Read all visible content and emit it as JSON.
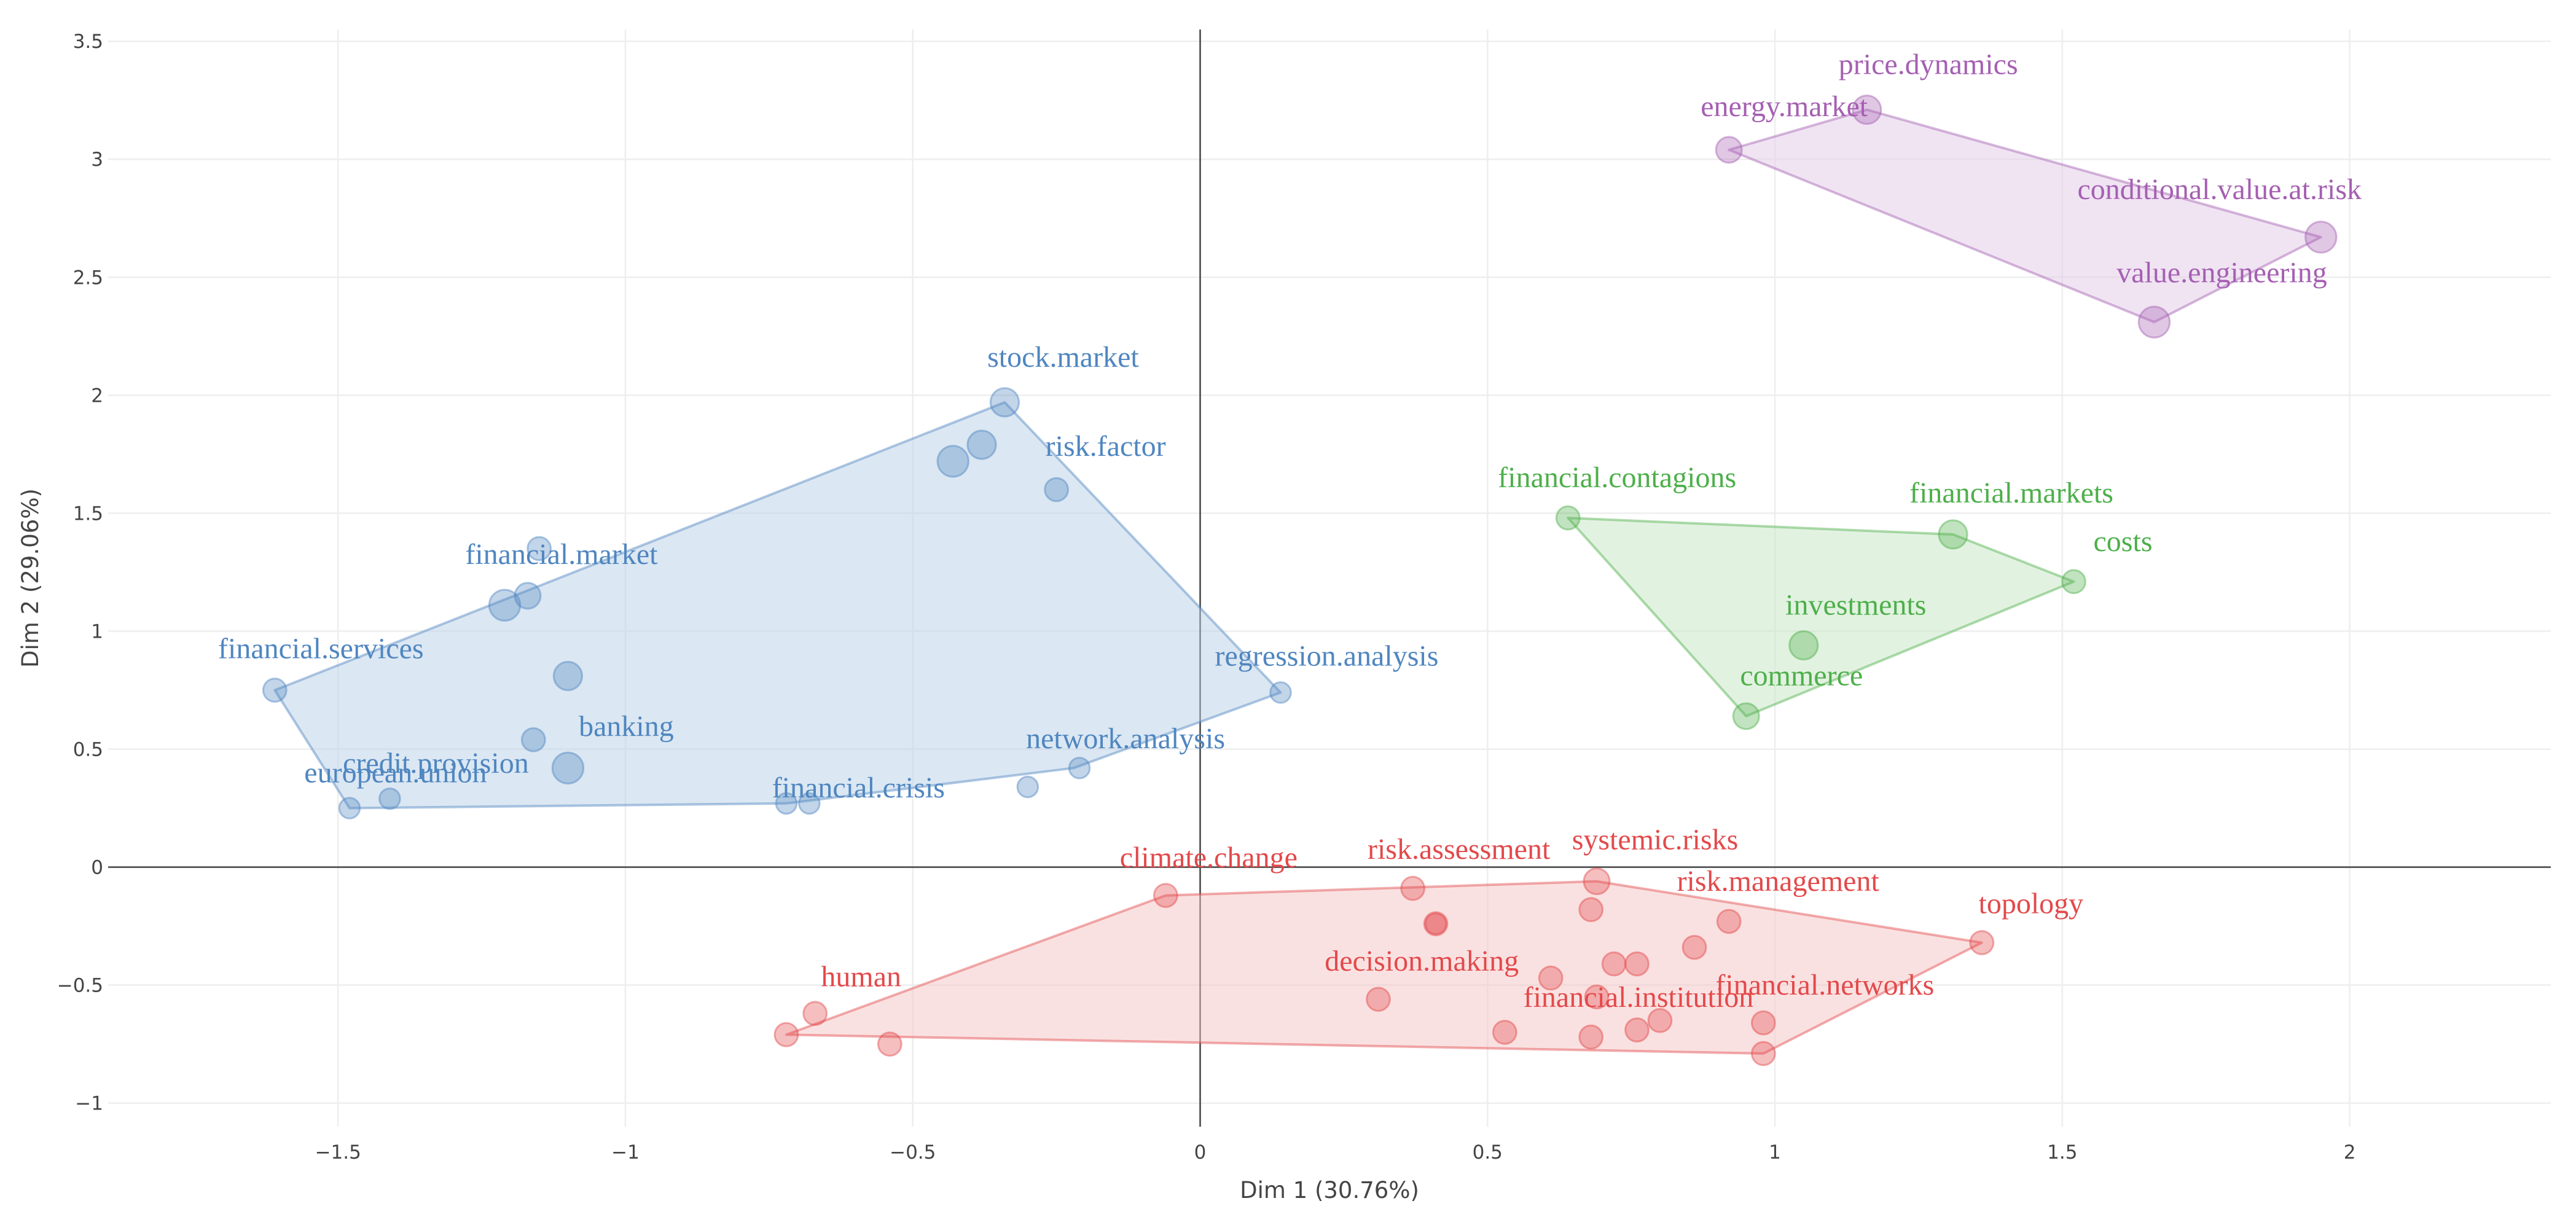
{
  "chart_data": {
    "type": "scatter",
    "title": "",
    "xlabel": "Dim 1 (30.76%)",
    "ylabel": "Dim 2 (29.06%)",
    "xlim": [
      -1.9,
      2.35
    ],
    "ylim": [
      -1.1,
      3.55
    ],
    "xticks": [
      {
        "v": -1.5,
        "t": "−1.5"
      },
      {
        "v": -1,
        "t": "−1"
      },
      {
        "v": -0.5,
        "t": "−0.5"
      },
      {
        "v": 0,
        "t": "0"
      },
      {
        "v": 0.5,
        "t": "0.5"
      },
      {
        "v": 1,
        "t": "1"
      },
      {
        "v": 1.5,
        "t": "1.5"
      },
      {
        "v": 2,
        "t": "2"
      }
    ],
    "yticks": [
      {
        "v": -1,
        "t": "−1"
      },
      {
        "v": -0.5,
        "t": "−0.5"
      },
      {
        "v": 0,
        "t": "0"
      },
      {
        "v": 0.5,
        "t": "0.5"
      },
      {
        "v": 1,
        "t": "1"
      },
      {
        "v": 1.5,
        "t": "1.5"
      },
      {
        "v": 2,
        "t": "2"
      },
      {
        "v": 2.5,
        "t": "2.5"
      },
      {
        "v": 3,
        "t": "3"
      },
      {
        "v": 3.5,
        "t": "3.5"
      }
    ],
    "grid": true,
    "clusters": [
      {
        "name": "cluster-blue",
        "color": "#4f86c0",
        "fill": "#b7cfe6",
        "hull": [
          [
            -1.61,
            0.75
          ],
          [
            -1.48,
            0.25
          ],
          [
            -0.72,
            0.27
          ],
          [
            -0.22,
            0.42
          ],
          [
            0.14,
            0.74
          ],
          [
            -0.34,
            1.97
          ]
        ],
        "points": [
          {
            "x": -1.61,
            "y": 0.75,
            "size": 0.9,
            "label": "financial.services"
          },
          {
            "x": -1.48,
            "y": 0.25,
            "size": 0.8,
            "label": "european.union"
          },
          {
            "x": -1.41,
            "y": 0.29,
            "size": 0.8,
            "label": "credit.provision"
          },
          {
            "x": -1.15,
            "y": 1.35,
            "size": 0.9,
            "label": ""
          },
          {
            "x": -1.21,
            "y": 1.11,
            "size": 1.2,
            "label": ""
          },
          {
            "x": -1.17,
            "y": 1.15,
            "size": 1.0,
            "label": "financial.market"
          },
          {
            "x": -1.1,
            "y": 0.81,
            "size": 1.1,
            "label": ""
          },
          {
            "x": -1.16,
            "y": 0.54,
            "size": 0.9,
            "label": ""
          },
          {
            "x": -1.1,
            "y": 0.42,
            "size": 1.2,
            "label": "banking"
          },
          {
            "x": -0.72,
            "y": 0.27,
            "size": 0.8,
            "label": ""
          },
          {
            "x": -0.68,
            "y": 0.27,
            "size": 0.8,
            "label": "financial.crisis"
          },
          {
            "x": -0.43,
            "y": 1.72,
            "size": 1.2,
            "label": ""
          },
          {
            "x": -0.38,
            "y": 1.79,
            "size": 1.1,
            "label": ""
          },
          {
            "x": -0.34,
            "y": 1.97,
            "size": 1.1,
            "label": "stock.market"
          },
          {
            "x": -0.25,
            "y": 1.6,
            "size": 0.9,
            "label": "risk.factor"
          },
          {
            "x": -0.3,
            "y": 0.34,
            "size": 0.8,
            "label": ""
          },
          {
            "x": -0.21,
            "y": 0.42,
            "size": 0.8,
            "label": "network.analysis"
          },
          {
            "x": 0.14,
            "y": 0.74,
            "size": 0.8,
            "label": "regression.analysis"
          }
        ]
      },
      {
        "name": "cluster-purple",
        "color": "#a55fb2",
        "fill": "#e2c9e8",
        "hull": [
          [
            0.92,
            3.04
          ],
          [
            1.16,
            3.21
          ],
          [
            1.95,
            2.67
          ],
          [
            1.66,
            2.31
          ]
        ],
        "points": [
          {
            "x": 0.92,
            "y": 3.04,
            "size": 1.0,
            "label": "energy.market"
          },
          {
            "x": 1.16,
            "y": 3.21,
            "size": 1.1,
            "label": "price.dynamics"
          },
          {
            "x": 1.95,
            "y": 2.67,
            "size": 1.2,
            "label": "conditional.value.at.risk"
          },
          {
            "x": 1.66,
            "y": 2.31,
            "size": 1.2,
            "label": "value.engineering"
          }
        ]
      },
      {
        "name": "cluster-green",
        "color": "#4daf4a",
        "fill": "#c6e6c3",
        "hull": [
          [
            0.64,
            1.48
          ],
          [
            1.31,
            1.41
          ],
          [
            1.52,
            1.21
          ],
          [
            0.95,
            0.64
          ]
        ],
        "points": [
          {
            "x": 0.64,
            "y": 1.48,
            "size": 0.9,
            "label": "financial.contagions"
          },
          {
            "x": 1.31,
            "y": 1.41,
            "size": 1.1,
            "label": "financial.markets"
          },
          {
            "x": 1.52,
            "y": 1.21,
            "size": 0.9,
            "label": "costs"
          },
          {
            "x": 1.05,
            "y": 0.94,
            "size": 1.1,
            "label": "investments"
          },
          {
            "x": 0.95,
            "y": 0.64,
            "size": 1.0,
            "label": "commerce"
          }
        ]
      },
      {
        "name": "cluster-red",
        "color": "#e3494b",
        "fill": "#f6c3c3",
        "hull": [
          [
            -0.06,
            -0.12
          ],
          [
            0.69,
            -0.06
          ],
          [
            1.36,
            -0.32
          ],
          [
            0.98,
            -0.79
          ],
          [
            -0.72,
            -0.71
          ]
        ],
        "points": [
          {
            "x": -0.06,
            "y": -0.12,
            "size": 0.9,
            "label": "climate.change"
          },
          {
            "x": 0.37,
            "y": -0.09,
            "size": 0.9,
            "label": "risk.assessment"
          },
          {
            "x": 0.69,
            "y": -0.06,
            "size": 1.0,
            "label": "systemic.risks"
          },
          {
            "x": 0.41,
            "y": -0.24,
            "size": 0.9,
            "label": ""
          },
          {
            "x": 0.41,
            "y": -0.24,
            "size": 0.8,
            "label": ""
          },
          {
            "x": 0.68,
            "y": -0.18,
            "size": 0.9,
            "label": ""
          },
          {
            "x": 0.92,
            "y": -0.23,
            "size": 0.9,
            "label": "risk.management"
          },
          {
            "x": 1.36,
            "y": -0.32,
            "size": 0.9,
            "label": "topology"
          },
          {
            "x": 0.72,
            "y": -0.41,
            "size": 0.9,
            "label": ""
          },
          {
            "x": 0.76,
            "y": -0.41,
            "size": 0.9,
            "label": ""
          },
          {
            "x": 0.86,
            "y": -0.34,
            "size": 0.9,
            "label": ""
          },
          {
            "x": 0.61,
            "y": -0.47,
            "size": 0.9,
            "label": "decision.making"
          },
          {
            "x": 0.69,
            "y": -0.55,
            "size": 0.9,
            "label": ""
          },
          {
            "x": 0.31,
            "y": -0.56,
            "size": 0.9,
            "label": ""
          },
          {
            "x": 0.8,
            "y": -0.65,
            "size": 0.9,
            "label": "financial.institution"
          },
          {
            "x": 0.98,
            "y": -0.66,
            "size": 0.9,
            "label": "financial.networks"
          },
          {
            "x": 0.53,
            "y": -0.7,
            "size": 0.9,
            "label": ""
          },
          {
            "x": 0.68,
            "y": -0.72,
            "size": 0.9,
            "label": ""
          },
          {
            "x": 0.76,
            "y": -0.69,
            "size": 0.9,
            "label": ""
          },
          {
            "x": 0.98,
            "y": -0.79,
            "size": 0.9,
            "label": ""
          },
          {
            "x": -0.67,
            "y": -0.62,
            "size": 0.9,
            "label": "human"
          },
          {
            "x": -0.72,
            "y": -0.71,
            "size": 0.9,
            "label": ""
          },
          {
            "x": -0.54,
            "y": -0.75,
            "size": 0.9,
            "label": ""
          }
        ]
      }
    ]
  }
}
